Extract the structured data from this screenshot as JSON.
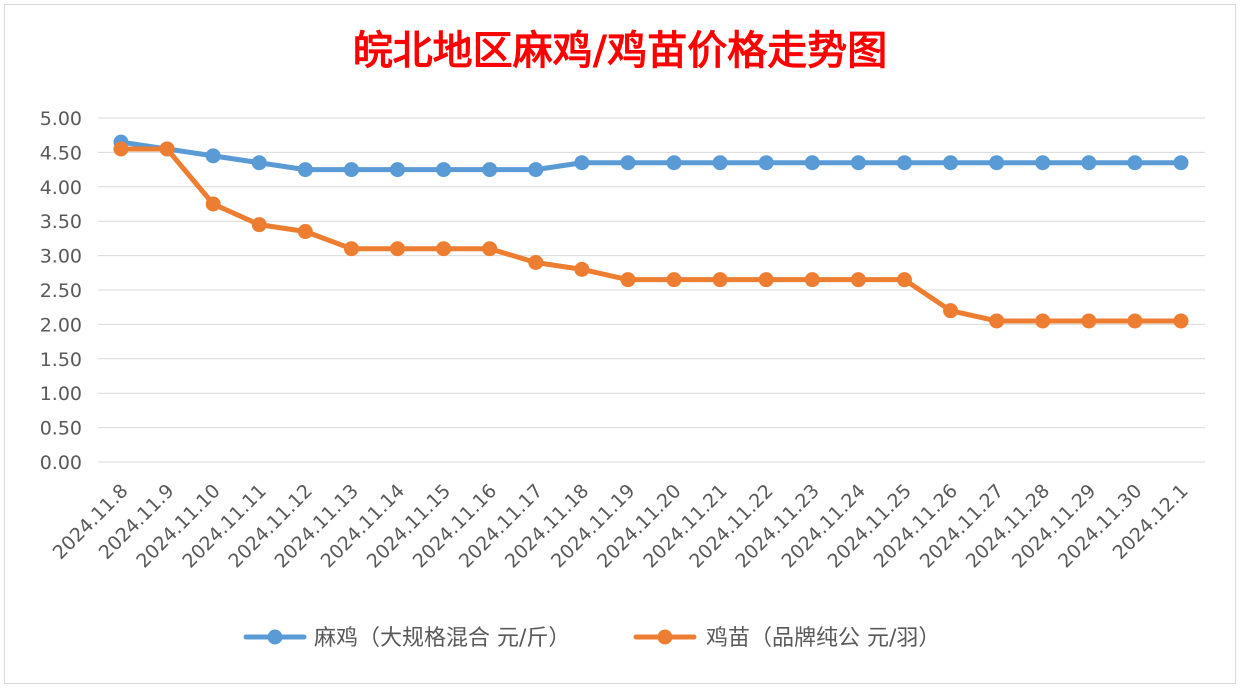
{
  "chart_data": {
    "type": "line",
    "title": "皖北地区麻鸡/鸡苗价格走势图",
    "title_color": "#ff0000",
    "xlabel": "",
    "ylabel": "",
    "ylim": [
      0,
      5
    ],
    "y_ticks": [
      "0.00",
      "0.50",
      "1.00",
      "1.50",
      "2.00",
      "2.50",
      "3.00",
      "3.50",
      "4.00",
      "4.50",
      "5.00"
    ],
    "grid": true,
    "legend_position": "bottom",
    "categories": [
      "2024.11.8",
      "2024.11.9",
      "2024.11.10",
      "2024.11.11",
      "2024.11.12",
      "2024.11.13",
      "2024.11.14",
      "2024.11.15",
      "2024.11.16",
      "2024.11.17",
      "2024.11.18",
      "2024.11.19",
      "2024.11.20",
      "2024.11.21",
      "2024.11.22",
      "2024.11.23",
      "2024.11.24",
      "2024.11.25",
      "2024.11.26",
      "2024.11.27",
      "2024.11.28",
      "2024.11.29",
      "2024.11.30",
      "2024.12.1"
    ],
    "series": [
      {
        "name": "麻鸡（大规格混合 元/斤）",
        "color": "#5b9bd5",
        "values": [
          4.65,
          4.55,
          4.45,
          4.35,
          4.25,
          4.25,
          4.25,
          4.25,
          4.25,
          4.25,
          4.35,
          4.35,
          4.35,
          4.35,
          4.35,
          4.35,
          4.35,
          4.35,
          4.35,
          4.35,
          4.35,
          4.35,
          4.35,
          4.35
        ]
      },
      {
        "name": "鸡苗（品牌纯公 元/羽）",
        "color": "#ed7d31",
        "values": [
          4.55,
          4.55,
          3.75,
          3.45,
          3.35,
          3.1,
          3.1,
          3.1,
          3.1,
          2.9,
          2.8,
          2.65,
          2.65,
          2.65,
          2.65,
          2.65,
          2.65,
          2.65,
          2.2,
          2.05,
          2.05,
          2.05,
          2.05,
          2.05
        ]
      }
    ]
  }
}
